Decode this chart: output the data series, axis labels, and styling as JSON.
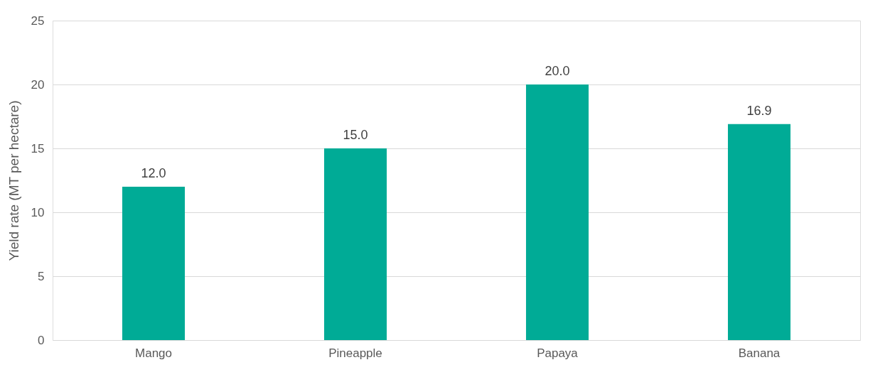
{
  "chart_data": {
    "type": "bar",
    "ylabel": "Yield rate (MT per hectare)",
    "categories": [
      "Mango",
      "Pineapple",
      "Papaya",
      "Banana"
    ],
    "values": [
      12.0,
      15.0,
      20.0,
      16.9
    ],
    "value_labels": [
      "12.0",
      "15.0",
      "20.0",
      "16.9"
    ],
    "color": "#00ab96",
    "ylim": [
      0,
      25
    ],
    "yticks": [
      0,
      5,
      10,
      15,
      20,
      25
    ],
    "grid": "y"
  }
}
